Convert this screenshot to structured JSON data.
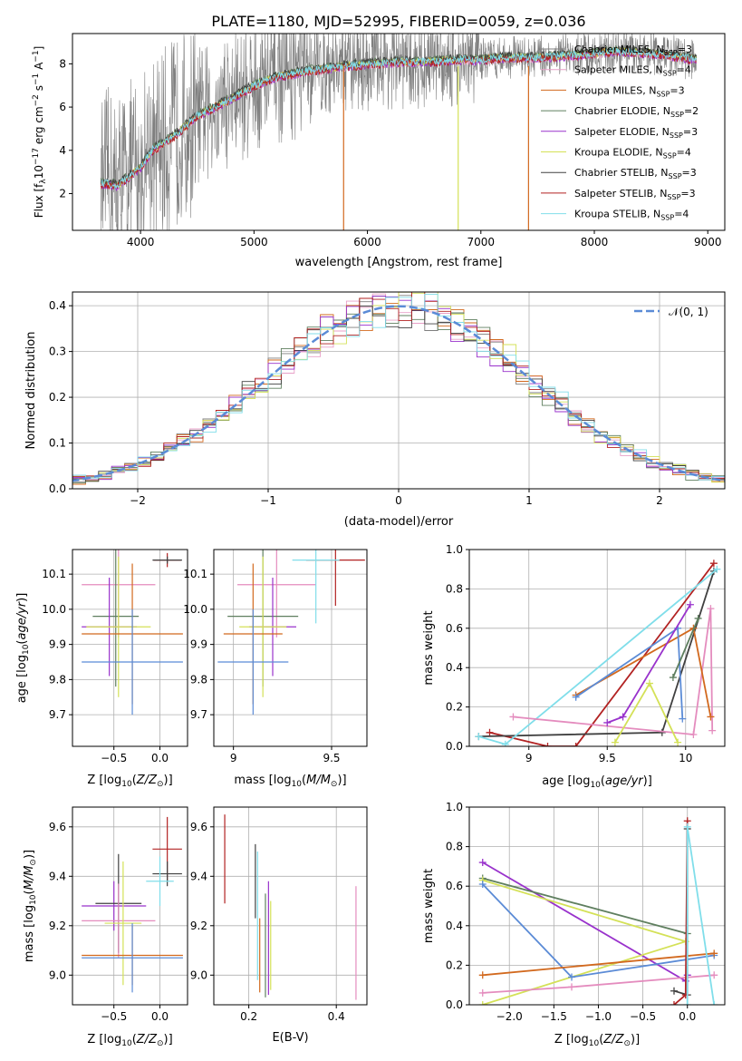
{
  "title": "PLATE=1180, MJD=52995, FIBERID=0059, z=0.036",
  "colors": {
    "chabrier_miles": "#7f7f7f",
    "salpeter_miles": "#e8a0c8",
    "kroupa_miles": "#d2691e",
    "chabrier_elodie": "#5f7f5f",
    "salpeter_elodie": "#9932cc",
    "kroupa_elodie": "#d4e157",
    "chabrier_stelib": "#404040",
    "salpeter_stelib": "#b22222",
    "kroupa_stelib": "#80deea",
    "blue": "#5b8bd6",
    "orange": "#d2691e",
    "pink": "#e48cbe",
    "data": "#808080"
  },
  "chart_data": [
    {
      "type": "line",
      "panel": "spectrum",
      "title": "PLATE=1180, MJD=52995, FIBERID=0059, z=0.036",
      "xlabel": "wavelength [Angstrom, rest frame]",
      "ylabel_parts": [
        "Flux [f",
        "λ",
        "10",
        "−17",
        " erg cm",
        "−2",
        " s",
        "−1",
        " A",
        "−1",
        "]"
      ],
      "xlim": [
        3400,
        9150
      ],
      "ylim": [
        0.3,
        9.4
      ],
      "xticks": [
        4000,
        5000,
        6000,
        7000,
        8000,
        9000
      ],
      "yticks": [
        2,
        4,
        6,
        8
      ],
      "legend": [
        {
          "label": "Chabrier MILES, N",
          "sub": "SSP",
          "value": "=3",
          "color": "#7f7f7f"
        },
        {
          "label": "Salpeter MILES, N",
          "sub": "SSP",
          "value": "=4",
          "color": "#e8a0c8"
        },
        {
          "label": "Kroupa MILES, N",
          "sub": "SSP",
          "value": "=3",
          "color": "#d2691e"
        },
        {
          "label": "Chabrier ELODIE, N",
          "sub": "SSP",
          "value": "=2",
          "color": "#5f7f5f"
        },
        {
          "label": "Salpeter ELODIE, N",
          "sub": "SSP",
          "value": "=3",
          "color": "#9932cc"
        },
        {
          "label": "Kroupa ELODIE, N",
          "sub": "SSP",
          "value": "=4",
          "color": "#d4e157"
        },
        {
          "label": "Chabrier STELIB, N",
          "sub": "SSP",
          "value": "=3",
          "color": "#404040"
        },
        {
          "label": "Salpeter STELIB, N",
          "sub": "SSP",
          "value": "=3",
          "color": "#b22222"
        },
        {
          "label": "Kroupa STELIB, N",
          "sub": "SSP",
          "value": "=4",
          "color": "#80deea"
        }
      ],
      "model_continuum": {
        "x": [
          3650,
          3800,
          4000,
          4100,
          4300,
          4500,
          4800,
          5000,
          5200,
          5500,
          5800,
          6000,
          6300,
          6500,
          6800,
          7000,
          7200,
          7500,
          7800,
          8000,
          8200,
          8500,
          8800,
          8900
        ],
        "y": [
          2.5,
          2.4,
          3.2,
          4.0,
          4.7,
          5.6,
          6.4,
          7.0,
          7.4,
          7.7,
          7.9,
          8.0,
          8.1,
          8.1,
          8.2,
          8.2,
          8.3,
          8.3,
          8.4,
          8.5,
          8.6,
          8.5,
          8.3,
          8.2
        ]
      }
    },
    {
      "type": "histogram",
      "panel": "residuals",
      "xlabel": "(data-model)/error",
      "ylabel": "Normed distribution",
      "xlim": [
        -2.5,
        2.5
      ],
      "ylim": [
        0,
        0.43
      ],
      "xticks": [
        -2,
        -1,
        0,
        1,
        2
      ],
      "xtick_labels": [
        "−2",
        "−1",
        "0",
        "1",
        "2"
      ],
      "yticks": [
        0.0,
        0.1,
        0.2,
        0.3,
        0.4
      ],
      "legend_label": "𝒩(0, 1)",
      "bin_width": 0.1
    },
    {
      "type": "scatter",
      "panel": "age-vs-Z",
      "xlabel": "Z [log10(Z/Z⊙)]",
      "ylabel": "age  [log10(age/yr)]",
      "xlim": [
        -0.95,
        0.3
      ],
      "ylim": [
        9.61,
        10.17
      ],
      "xticks": [
        -0.5,
        0.0
      ],
      "xtick_labels": [
        "−0.5",
        "0.0"
      ],
      "yticks": [
        9.7,
        9.8,
        9.9,
        10.0,
        10.1
      ],
      "points": [
        {
          "x": -0.45,
          "y": 10.07,
          "xerr": 0.4,
          "yerr": 0.15,
          "color": "#e48cbe"
        },
        {
          "x": -0.48,
          "y": 9.98,
          "xerr": 0.25,
          "yerr": 0.2,
          "color": "#5f7f5f"
        },
        {
          "x": -0.55,
          "y": 9.95,
          "xerr": 0.3,
          "yerr": 0.14,
          "color": "#9932cc"
        },
        {
          "x": -0.45,
          "y": 9.95,
          "xerr": 0.35,
          "yerr": 0.2,
          "color": "#d4e157"
        },
        {
          "x": -0.3,
          "y": 9.93,
          "xerr": 0.55,
          "yerr": 0.2,
          "color": "#d2691e"
        },
        {
          "x": -0.3,
          "y": 9.85,
          "xerr": 0.55,
          "yerr": 0.15,
          "color": "#5b8bd6"
        },
        {
          "x": 0.08,
          "y": 10.14,
          "xerr": 0.15,
          "yerr": 0.02,
          "color": "#b22222"
        },
        {
          "x": 0.08,
          "y": 10.14,
          "xerr": 0.16,
          "yerr": 0.01,
          "color": "#404040"
        }
      ]
    },
    {
      "type": "scatter",
      "panel": "age-vs-mass",
      "xlabel": "mass [log10(M/M⊙)]",
      "ylabel": "",
      "xlim": [
        8.9,
        9.68
      ],
      "ylim": [
        9.61,
        10.17
      ],
      "xticks": [
        9.0,
        9.5
      ],
      "yticks": [
        9.7,
        9.8,
        9.9,
        10.0,
        10.1
      ],
      "points": [
        {
          "x": 9.22,
          "y": 10.07,
          "xerr": 0.2,
          "yerr": 0.15,
          "color": "#e48cbe"
        },
        {
          "x": 9.15,
          "y": 9.98,
          "xerr": 0.18,
          "yerr": 0.2,
          "color": "#5f7f5f"
        },
        {
          "x": 9.2,
          "y": 9.95,
          "xerr": 0.12,
          "yerr": 0.14,
          "color": "#9932cc"
        },
        {
          "x": 9.15,
          "y": 9.95,
          "xerr": 0.12,
          "yerr": 0.2,
          "color": "#d4e157"
        },
        {
          "x": 9.1,
          "y": 9.93,
          "xerr": 0.15,
          "yerr": 0.2,
          "color": "#d2691e"
        },
        {
          "x": 9.1,
          "y": 9.85,
          "xerr": 0.18,
          "yerr": 0.15,
          "color": "#5b8bd6"
        },
        {
          "x": 9.52,
          "y": 10.14,
          "xerr": 0.15,
          "yerr": 0.13,
          "color": "#b22222"
        },
        {
          "x": 9.42,
          "y": 10.14,
          "xerr": 0.12,
          "yerr": 0.18,
          "color": "#80deea"
        }
      ]
    },
    {
      "type": "line",
      "panel": "weight-vs-age",
      "xlabel": "age  [log10(age/yr)]",
      "ylabel": "mass weight",
      "xlim": [
        8.62,
        10.25
      ],
      "ylim": [
        0,
        1
      ],
      "xticks": [
        9.0,
        9.5,
        10.0
      ],
      "yticks": [
        0.0,
        0.2,
        0.4,
        0.6,
        0.8,
        1.0
      ],
      "series": [
        {
          "color": "#b22222",
          "x": [
            8.75,
            9.12,
            9.3,
            10.18
          ],
          "y": [
            0.07,
            0.0,
            0.0,
            0.93
          ]
        },
        {
          "color": "#404040",
          "x": [
            8.68,
            9.85,
            10.18
          ],
          "y": [
            0.05,
            0.07,
            0.89
          ]
        },
        {
          "color": "#80deea",
          "x": [
            8.68,
            8.85,
            10.2
          ],
          "y": [
            0.05,
            0.01,
            0.9
          ]
        },
        {
          "color": "#e48cbe",
          "x": [
            8.9,
            10.05,
            10.16,
            10.17
          ],
          "y": [
            0.15,
            0.06,
            0.7,
            0.08
          ]
        },
        {
          "color": "#d2691e",
          "x": [
            9.3,
            10.05,
            10.16
          ],
          "y": [
            0.26,
            0.6,
            0.15
          ]
        },
        {
          "color": "#5b8bd6",
          "x": [
            9.3,
            9.95,
            9.98
          ],
          "y": [
            0.25,
            0.6,
            0.14
          ]
        },
        {
          "color": "#9932cc",
          "x": [
            9.5,
            9.6,
            10.03
          ],
          "y": [
            0.12,
            0.15,
            0.72
          ]
        },
        {
          "color": "#d4e157",
          "x": [
            9.55,
            9.77,
            9.95
          ],
          "y": [
            0.02,
            0.32,
            0.02
          ]
        },
        {
          "color": "#5f7f5f",
          "x": [
            9.92,
            10.08
          ],
          "y": [
            0.35,
            0.65
          ]
        }
      ]
    },
    {
      "type": "scatter",
      "panel": "mass-vs-Z",
      "xlabel": "Z [log10(Z/Z⊙)]",
      "ylabel": "mass [log10(M/M⊙)]",
      "xlim": [
        -0.95,
        0.3
      ],
      "ylim": [
        8.88,
        9.68
      ],
      "xticks": [
        -0.5,
        0.0
      ],
      "xtick_labels": [
        "−0.5",
        "0.0"
      ],
      "yticks": [
        9.0,
        9.2,
        9.4,
        9.6
      ],
      "points": [
        {
          "x": -0.5,
          "y": 9.28,
          "xerr": 0.35,
          "yerr": 0.1,
          "color": "#9932cc"
        },
        {
          "x": -0.45,
          "y": 9.29,
          "xerr": 0.25,
          "yerr": 0.2,
          "color": "#404040"
        },
        {
          "x": -0.45,
          "y": 9.22,
          "xerr": 0.4,
          "yerr": 0.15,
          "color": "#e48cbe"
        },
        {
          "x": -0.4,
          "y": 9.21,
          "xerr": 0.2,
          "yerr": 0.25,
          "color": "#d4e157"
        },
        {
          "x": -0.3,
          "y": 9.08,
          "xerr": 0.55,
          "yerr": 0.12,
          "color": "#d2691e"
        },
        {
          "x": -0.3,
          "y": 9.07,
          "xerr": 0.55,
          "yerr": 0.14,
          "color": "#5b8bd6"
        },
        {
          "x": 0.08,
          "y": 9.51,
          "xerr": 0.16,
          "yerr": 0.13,
          "color": "#b22222"
        },
        {
          "x": 0.08,
          "y": 9.41,
          "xerr": 0.16,
          "yerr": 0.05,
          "color": "#404040"
        },
        {
          "x": 0.0,
          "y": 9.38,
          "xerr": 0.15,
          "yerr": 0.1,
          "color": "#80deea"
        }
      ]
    },
    {
      "type": "scatter",
      "panel": "mass-vs-EBV",
      "xlabel": "E(B-V)",
      "ylabel": "",
      "xlim": [
        0.12,
        0.47
      ],
      "ylim": [
        8.88,
        9.68
      ],
      "xticks": [
        0.2,
        0.4
      ],
      "yticks": [
        9.0,
        9.2,
        9.4,
        9.6
      ],
      "points": [
        {
          "x": 0.145,
          "y": 9.47,
          "yerr": 0.18,
          "color": "#b22222"
        },
        {
          "x": 0.215,
          "y": 9.38,
          "yerr": 0.15,
          "color": "#404040"
        },
        {
          "x": 0.22,
          "y": 9.24,
          "yerr": 0.26,
          "color": "#80deea"
        },
        {
          "x": 0.225,
          "y": 9.08,
          "yerr": 0.15,
          "color": "#d2691e"
        },
        {
          "x": 0.238,
          "y": 9.12,
          "yerr": 0.21,
          "color": "#5f7f5f"
        },
        {
          "x": 0.245,
          "y": 9.15,
          "yerr": 0.23,
          "color": "#9932cc"
        },
        {
          "x": 0.25,
          "y": 9.12,
          "yerr": 0.18,
          "color": "#d4e157"
        },
        {
          "x": 0.445,
          "y": 9.13,
          "yerr": 0.23,
          "color": "#e48cbe"
        }
      ]
    },
    {
      "type": "line",
      "panel": "weight-vs-Z",
      "xlabel": "Z [log10(Z/Z⊙)]",
      "ylabel": "mass weight",
      "xlim": [
        -2.45,
        0.42
      ],
      "ylim": [
        0,
        1
      ],
      "xticks": [
        -2.0,
        -1.5,
        -1.0,
        -0.5,
        0.0
      ],
      "xtick_labels": [
        "−2.0",
        "−1.5",
        "−1.0",
        "−0.5",
        "0.0"
      ],
      "yticks": [
        0.0,
        0.2,
        0.4,
        0.6,
        0.8,
        1.0
      ],
      "series": [
        {
          "color": "#9932cc",
          "x": [
            -2.3,
            -0.02,
            0.0
          ],
          "y": [
            0.72,
            0.12,
            0.15
          ]
        },
        {
          "color": "#5f7f5f",
          "x": [
            -2.3,
            0.0
          ],
          "y": [
            0.64,
            0.36
          ]
        },
        {
          "color": "#d4e157",
          "x": [
            -2.3,
            -0.02,
            -2.3
          ],
          "y": [
            0.63,
            0.32,
            0.0
          ]
        },
        {
          "color": "#5b8bd6",
          "x": [
            -2.3,
            -1.3,
            0.3
          ],
          "y": [
            0.61,
            0.14,
            0.25
          ]
        },
        {
          "color": "#d2691e",
          "x": [
            -2.3,
            0.3
          ],
          "y": [
            0.15,
            0.26
          ]
        },
        {
          "color": "#e48cbe",
          "x": [
            -2.3,
            -1.3,
            0.3
          ],
          "y": [
            0.06,
            0.09,
            0.15
          ]
        },
        {
          "color": "#404040",
          "x": [
            -0.15,
            0.0,
            0.0
          ],
          "y": [
            0.07,
            0.05,
            0.89
          ]
        },
        {
          "color": "#b22222",
          "x": [
            -0.15,
            -0.02,
            0.0
          ],
          "y": [
            0.0,
            0.05,
            0.93
          ]
        },
        {
          "color": "#80deea",
          "x": [
            0.0,
            0.0,
            0.3
          ],
          "y": [
            0.0,
            0.9,
            0.0
          ]
        }
      ]
    }
  ]
}
